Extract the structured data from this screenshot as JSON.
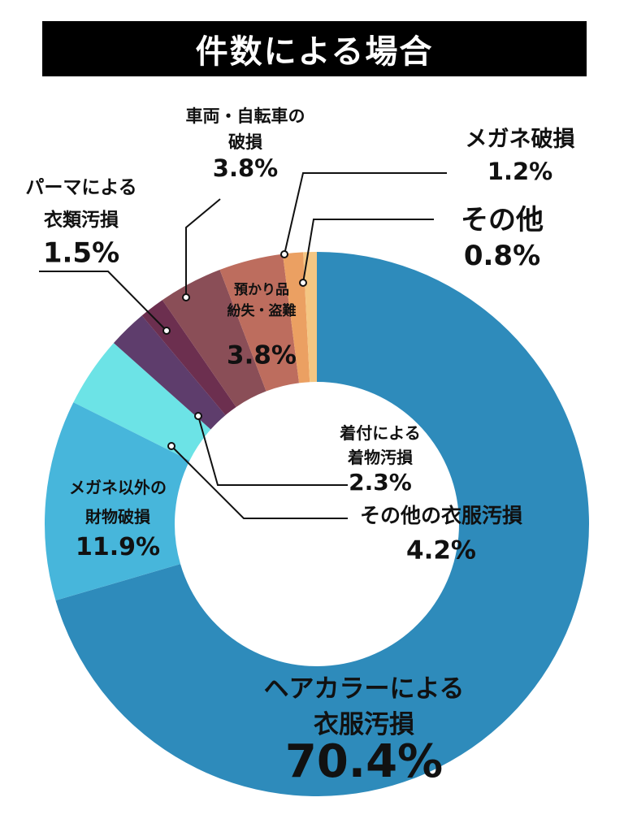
{
  "chart_data": {
    "type": "pie",
    "title": "件数による場合",
    "slices": [
      {
        "label_lines": [
          "ヘアカラーによる",
          "衣服汚損"
        ],
        "value": 70.4,
        "value_text": "70.4%",
        "color": "#2e8bbb"
      },
      {
        "label_lines": [
          "メガネ以外の",
          "財物破損"
        ],
        "value": 11.9,
        "value_text": "11.9%",
        "color": "#47b6db"
      },
      {
        "label_lines": [
          "その他の衣服汚損"
        ],
        "value": 4.2,
        "value_text": "4.2%",
        "color": "#6ce3e6"
      },
      {
        "label_lines": [
          "着付による",
          "着物汚損"
        ],
        "value": 2.3,
        "value_text": "2.3%",
        "color": "#5e3d6c"
      },
      {
        "label_lines": [
          "パーマによる",
          "衣類汚損"
        ],
        "value": 1.5,
        "value_text": "1.5%",
        "color": "#6c2f4f"
      },
      {
        "label_lines": [
          "車両・自転車の",
          "破損"
        ],
        "value": 3.8,
        "value_text": "3.8%",
        "color": "#8a4e57"
      },
      {
        "label_lines": [
          "預かり品",
          "紛失・盗難"
        ],
        "value": 3.8,
        "value_text": "3.8%",
        "color": "#bd6d5e"
      },
      {
        "label_lines": [
          "メガネ破損"
        ],
        "value": 1.2,
        "value_text": "1.2%",
        "color": "#eba062"
      },
      {
        "label_lines": [
          "その他"
        ],
        "value": 0.8,
        "value_text": "0.8%",
        "color": "#f4c683"
      }
    ]
  }
}
